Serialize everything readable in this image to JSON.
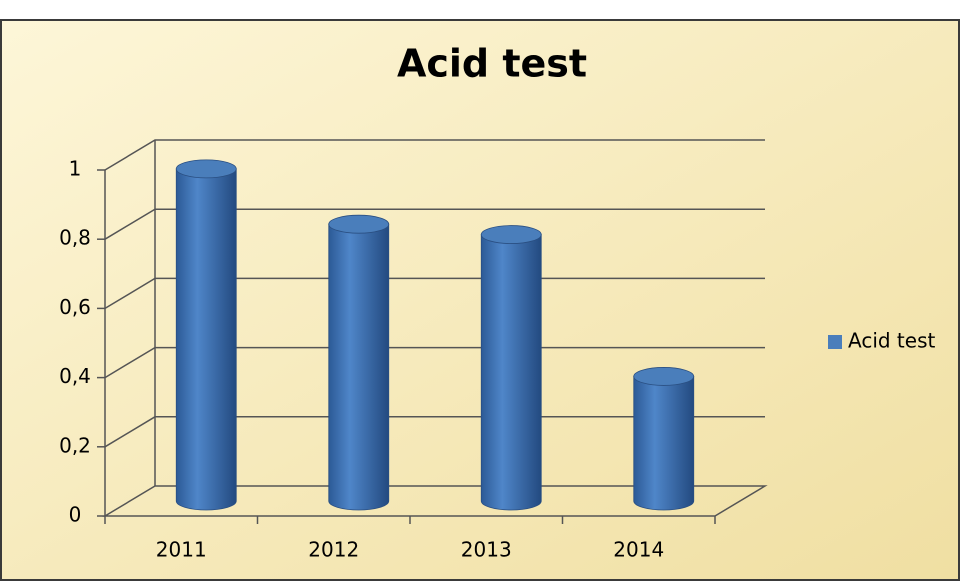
{
  "chart_data": {
    "type": "bar3d",
    "title": "Acid test",
    "categories": [
      "2011",
      "2012",
      "2013",
      "2014"
    ],
    "series": [
      {
        "name": "Acid test",
        "color": "#4a7ebb",
        "values": [
          0.96,
          0.8,
          0.77,
          0.36
        ]
      }
    ],
    "ylim": [
      0,
      1
    ],
    "yticks": [
      0,
      {
        "value": 0.2,
        "label": "0,2"
      },
      {
        "value": 0.4,
        "label": "0,4"
      },
      {
        "value": 0.6,
        "label": "0,6"
      },
      {
        "value": 0.8,
        "label": "0,8"
      },
      1
    ],
    "grid": true,
    "legend": "right"
  }
}
